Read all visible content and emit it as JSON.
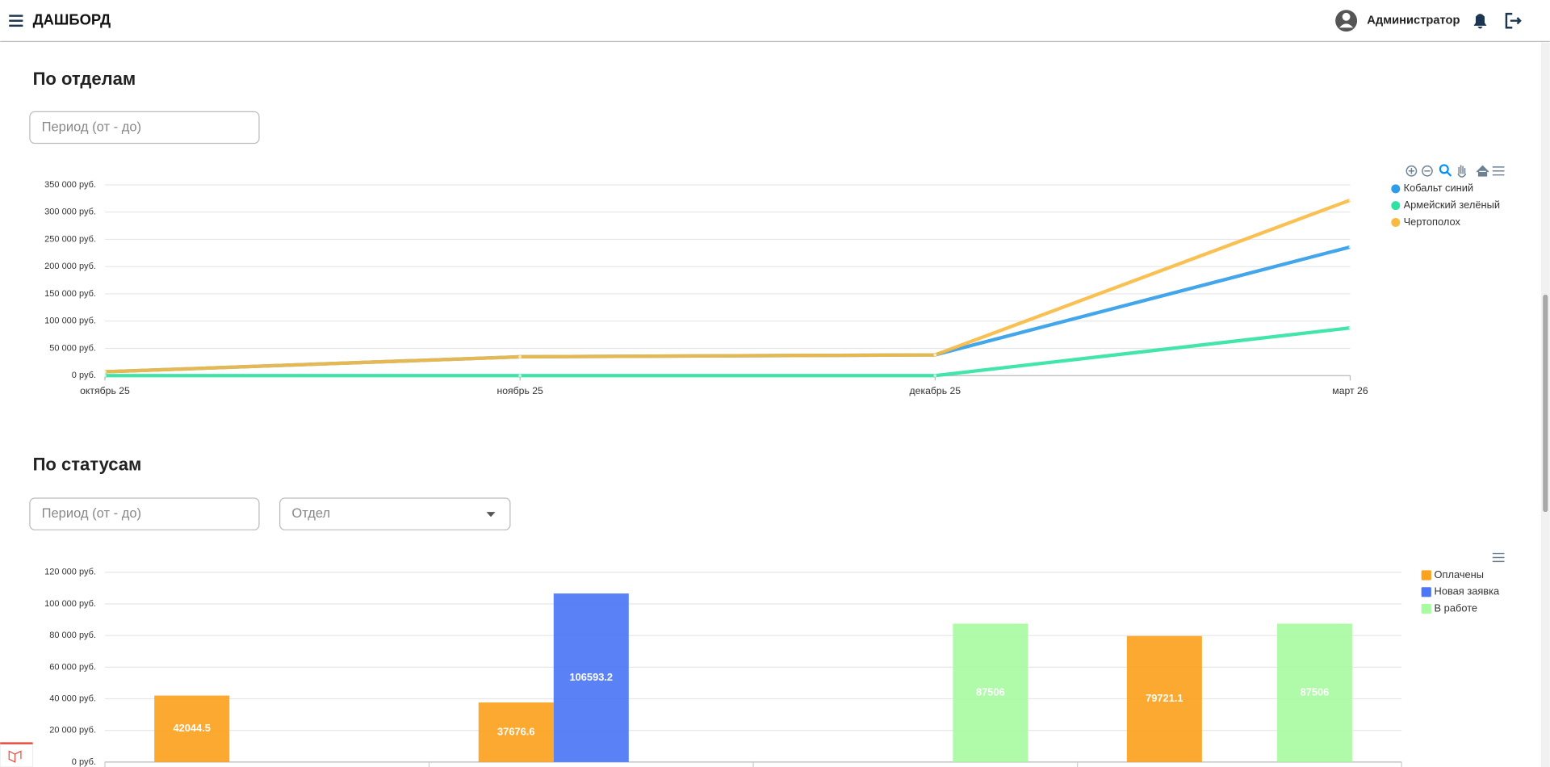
{
  "header": {
    "title": "ДАШБОРД",
    "user": "Администратор"
  },
  "sections": [
    {
      "title": "По отделам",
      "period_placeholder": "Период (от - до)"
    },
    {
      "title": "По статусам",
      "period_placeholder": "Период (от - до)",
      "department_placeholder": "Отдел"
    }
  ],
  "chart_data": [
    {
      "type": "line",
      "categories": [
        "октябрь 25",
        "ноябрь 25",
        "декабрь 25",
        "март 26"
      ],
      "series": [
        {
          "name": "Кобальт синий",
          "color": "#2f9ce8",
          "values": [
            7000,
            34500,
            38000,
            236000
          ]
        },
        {
          "name": "Армейский зелёный",
          "color": "#2ee3a2",
          "values": [
            0,
            0,
            0,
            87506
          ]
        },
        {
          "name": "Чертополох",
          "color": "#f8ba40",
          "values": [
            7000,
            34500,
            38000,
            322000
          ]
        }
      ],
      "ylim": [
        0,
        350000
      ],
      "yticks": [
        {
          "value": 0,
          "label": "0 руб."
        },
        {
          "value": 50000,
          "label": "50 000 руб."
        },
        {
          "value": 100000,
          "label": "100 000 руб."
        },
        {
          "value": 150000,
          "label": "150 000 руб."
        },
        {
          "value": 200000,
          "label": "200 000 руб."
        },
        {
          "value": 250000,
          "label": "250 000 руб."
        },
        {
          "value": 300000,
          "label": "300 000 руб."
        },
        {
          "value": 350000,
          "label": "350 000 руб."
        }
      ],
      "grid": true,
      "legend": "right"
    },
    {
      "type": "bar",
      "categories": [
        null,
        null,
        null,
        null
      ],
      "series": [
        {
          "name": "Оплачены",
          "color": "#fba21e",
          "values": [
            42044.5,
            37676.6,
            null,
            79721.1
          ]
        },
        {
          "name": "Новая заявка",
          "color": "#4d76f6",
          "values": [
            null,
            106593.2,
            null,
            null
          ]
        },
        {
          "name": "В работе",
          "color": "#a9fba2",
          "values": [
            null,
            null,
            87506,
            87506
          ]
        }
      ],
      "ylim": [
        0,
        120000
      ],
      "yticks": [
        {
          "value": 0,
          "label": "0 руб."
        },
        {
          "value": 20000,
          "label": "20 000 руб."
        },
        {
          "value": 40000,
          "label": "40 000 руб."
        },
        {
          "value": 60000,
          "label": "60 000 руб."
        },
        {
          "value": 80000,
          "label": "80 000 руб."
        },
        {
          "value": 100000,
          "label": "100 000 руб."
        },
        {
          "value": 120000,
          "label": "120 000 руб."
        }
      ],
      "grid": true,
      "legend": "right"
    }
  ]
}
